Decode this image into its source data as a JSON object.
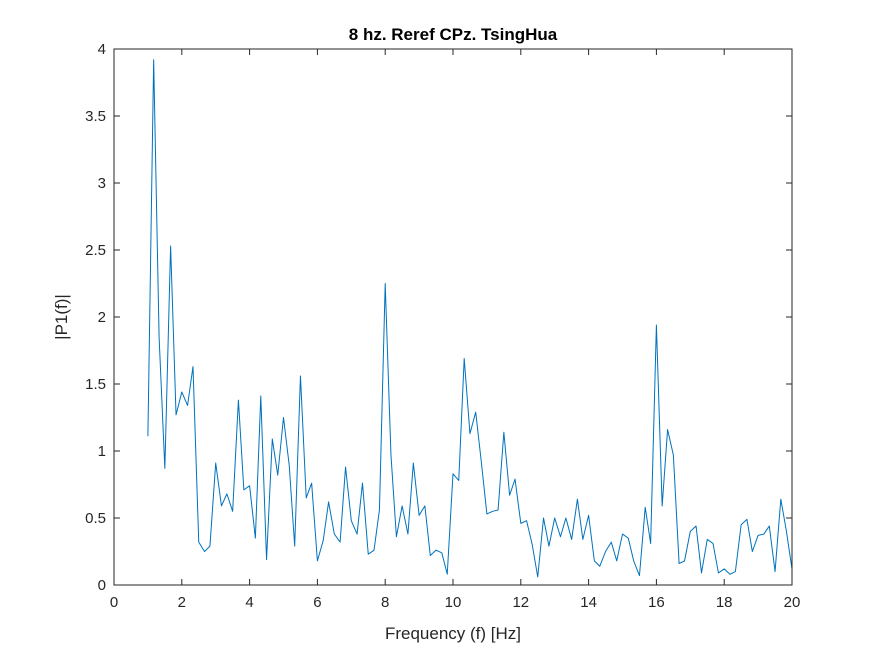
{
  "chart_data": {
    "type": "line",
    "title": "8 hz. Reref CPz. TsingHua",
    "xlabel": "Frequency (f) [Hz]",
    "ylabel": "|P1(f)|",
    "xlim": [
      0,
      20
    ],
    "ylim": [
      0,
      4
    ],
    "xticks": [
      0,
      2,
      4,
      6,
      8,
      10,
      12,
      14,
      16,
      18,
      20
    ],
    "yticks": [
      0,
      0.5,
      1,
      1.5,
      2,
      2.5,
      3,
      3.5,
      4
    ],
    "xtick_labels": [
      "0",
      "2",
      "4",
      "6",
      "8",
      "10",
      "12",
      "14",
      "16",
      "18",
      "20"
    ],
    "ytick_labels": [
      "0",
      "0.5",
      "1",
      "1.5",
      "2",
      "2.5",
      "3",
      "3.5",
      "4"
    ],
    "grid": false,
    "box": true,
    "line_color": "#0072BD",
    "series": [
      {
        "x": [
          1.0,
          1.17,
          1.33,
          1.5,
          1.67,
          1.83,
          2.0,
          2.17,
          2.33,
          2.5,
          2.67,
          2.83,
          3.0,
          3.17,
          3.33,
          3.5,
          3.67,
          3.83,
          4.0,
          4.17,
          4.33,
          4.5,
          4.67,
          4.83,
          5.0,
          5.17,
          5.33,
          5.5,
          5.67,
          5.83,
          6.0,
          6.17,
          6.33,
          6.5,
          6.67,
          6.83,
          7.0,
          7.17,
          7.33,
          7.5,
          7.67,
          7.83,
          8.0,
          8.17,
          8.33,
          8.5,
          8.67,
          8.83,
          9.0,
          9.17,
          9.33,
          9.5,
          9.67,
          9.83,
          10.0,
          10.17,
          10.33,
          10.5,
          10.67,
          10.83,
          11.0,
          11.17,
          11.33,
          11.5,
          11.67,
          11.83,
          12.0,
          12.17,
          12.33,
          12.5,
          12.67,
          12.83,
          13.0,
          13.17,
          13.33,
          13.5,
          13.67,
          13.83,
          14.0,
          14.17,
          14.33,
          14.5,
          14.67,
          14.83,
          15.0,
          15.17,
          15.33,
          15.5,
          15.67,
          15.83,
          16.0,
          16.17,
          16.33,
          16.5,
          16.67,
          16.83,
          17.0,
          17.17,
          17.33,
          17.5,
          17.67,
          17.83,
          18.0,
          18.17,
          18.33,
          18.5,
          18.67,
          18.83,
          19.0,
          19.17,
          19.33,
          19.5,
          19.67,
          19.83,
          20.0
        ],
        "values": [
          1.11,
          3.92,
          1.85,
          0.87,
          2.53,
          1.27,
          1.44,
          1.34,
          1.63,
          0.32,
          0.25,
          0.29,
          0.91,
          0.59,
          0.68,
          0.55,
          1.38,
          0.71,
          0.74,
          0.35,
          1.41,
          0.19,
          1.09,
          0.82,
          1.25,
          0.89,
          0.29,
          1.56,
          0.65,
          0.76,
          0.18,
          0.33,
          0.62,
          0.38,
          0.32,
          0.88,
          0.48,
          0.38,
          0.76,
          0.23,
          0.26,
          0.56,
          2.25,
          0.97,
          0.36,
          0.59,
          0.38,
          0.91,
          0.52,
          0.59,
          0.22,
          0.26,
          0.24,
          0.08,
          0.83,
          0.78,
          1.69,
          1.13,
          1.29,
          0.93,
          0.53,
          0.55,
          0.56,
          1.14,
          0.67,
          0.79,
          0.46,
          0.48,
          0.31,
          0.06,
          0.5,
          0.29,
          0.5,
          0.36,
          0.5,
          0.34,
          0.64,
          0.34,
          0.52,
          0.18,
          0.14,
          0.25,
          0.32,
          0.18,
          0.38,
          0.35,
          0.18,
          0.07,
          0.58,
          0.31,
          1.94,
          0.59,
          1.16,
          0.97,
          0.16,
          0.18,
          0.4,
          0.44,
          0.09,
          0.34,
          0.31,
          0.09,
          0.12,
          0.08,
          0.1,
          0.45,
          0.49,
          0.25,
          0.37,
          0.38,
          0.44,
          0.1,
          0.64,
          0.41,
          0.12
        ]
      }
    ]
  }
}
